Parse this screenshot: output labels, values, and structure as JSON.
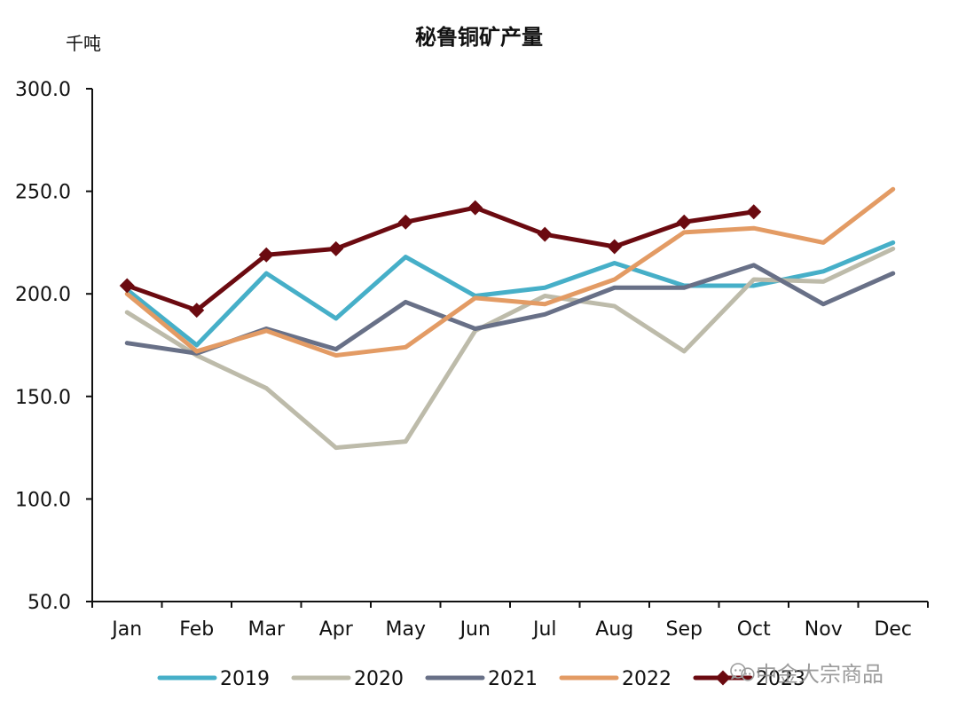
{
  "chart_data": {
    "type": "line",
    "title": "秘鲁铜矿产量",
    "ylabel": "千吨",
    "xlabel": "",
    "ylim": [
      50,
      300
    ],
    "yticks": [
      300,
      250,
      200,
      150,
      100,
      50
    ],
    "ytick_labels": [
      "300.0",
      "250.0",
      "200.0",
      "150.0",
      "100.0",
      "50.0"
    ],
    "categories": [
      "Jan",
      "Feb",
      "Mar",
      "Apr",
      "May",
      "Jun",
      "Jul",
      "Aug",
      "Sep",
      "Oct",
      "Nov",
      "Dec"
    ],
    "series": [
      {
        "name": "2019",
        "color": "#46AFC8",
        "marker": false,
        "values": [
          202,
          175,
          210,
          188,
          218,
          199,
          203,
          215,
          204,
          204,
          211,
          225
        ]
      },
      {
        "name": "2020",
        "color": "#BDBBAA",
        "marker": false,
        "values": [
          191,
          170,
          154,
          125,
          128,
          182,
          199,
          194,
          172,
          207,
          206,
          222
        ]
      },
      {
        "name": "2021",
        "color": "#687087",
        "marker": false,
        "values": [
          176,
          171,
          183,
          173,
          196,
          183,
          190,
          203,
          203,
          214,
          195,
          210
        ]
      },
      {
        "name": "2022",
        "color": "#E39B64",
        "marker": false,
        "values": [
          200,
          172,
          182,
          170,
          174,
          198,
          195,
          207,
          230,
          232,
          225,
          251
        ]
      },
      {
        "name": "2023",
        "color": "#6B0A10",
        "marker": true,
        "values": [
          204,
          192,
          219,
          222,
          235,
          242,
          229,
          223,
          235,
          240,
          null,
          null
        ]
      }
    ],
    "legend_position": "bottom",
    "grid": false
  },
  "watermark": {
    "text": "中金大宗商品",
    "icon": "wechat-icon"
  }
}
